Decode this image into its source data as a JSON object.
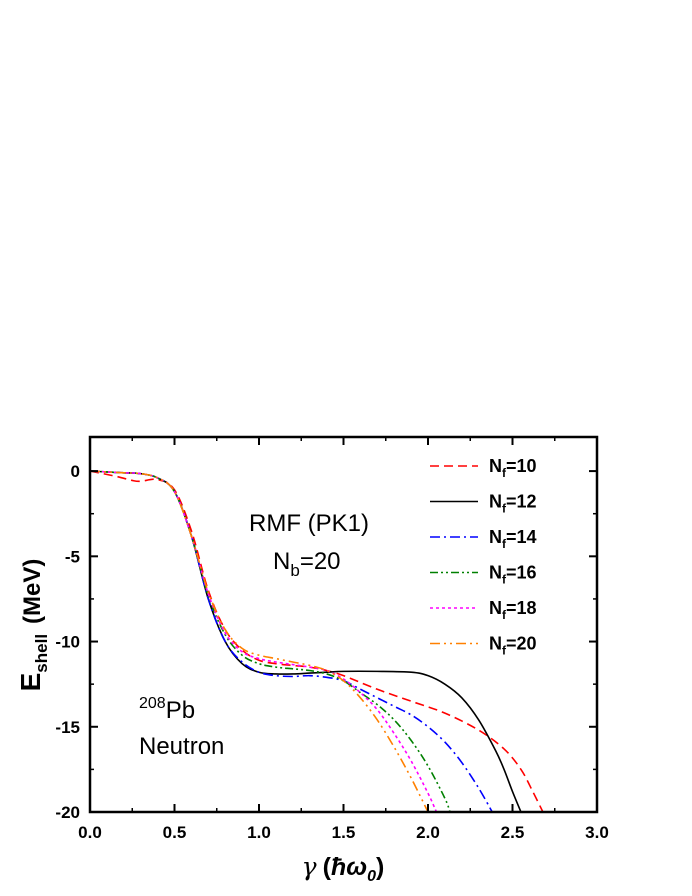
{
  "chart_data": {
    "type": "line",
    "xlabel_symbol": "γ",
    "xlabel_unit_symbol": "ħω",
    "xlabel_unit_sub": "0",
    "ylabel_main": "E",
    "ylabel_sub": "shell",
    "ylabel_unit": "(MeV)",
    "xlim": [
      0.0,
      3.0
    ],
    "ylim": [
      -20,
      2
    ],
    "x_ticks": [
      {
        "value": 0.0,
        "label": "0.0"
      },
      {
        "value": 0.5,
        "label": "0.5"
      },
      {
        "value": 1.0,
        "label": "1.0"
      },
      {
        "value": 1.5,
        "label": "1.5"
      },
      {
        "value": 2.0,
        "label": "2.0"
      },
      {
        "value": 2.5,
        "label": "2.5"
      },
      {
        "value": 3.0,
        "label": "3.0"
      }
    ],
    "y_ticks": [
      {
        "value": 0,
        "label": "0"
      },
      {
        "value": -5,
        "label": "-5"
      },
      {
        "value": -10,
        "label": "-10"
      },
      {
        "value": -15,
        "label": "-15"
      },
      {
        "value": -20,
        "label": "-20"
      }
    ],
    "annotations": {
      "model": "RMF (PK1)",
      "nb_main": "N",
      "nb_sub": "b",
      "nb_value": "=20",
      "nucleus_mass": "208",
      "nucleus_symbol": "Pb",
      "particle": "Neutron"
    },
    "legend_position": "top-right",
    "series": [
      {
        "name_main": "N",
        "name_sub": "f",
        "name_value": "=10",
        "color": "#ff0000",
        "dash": "9,5",
        "x": [
          0.0,
          0.15,
          0.25,
          0.3,
          0.4,
          0.5,
          0.6,
          0.7,
          0.8,
          0.9,
          1.0,
          1.1,
          1.2,
          1.3,
          1.4,
          1.5,
          1.7,
          1.9,
          2.1,
          2.3,
          2.45,
          2.55,
          2.62,
          2.68
        ],
        "y": [
          0.0,
          -0.3,
          -0.55,
          -0.6,
          -0.5,
          -1.1,
          -3.5,
          -7.0,
          -9.3,
          -10.5,
          -11.1,
          -11.3,
          -11.4,
          -11.5,
          -11.7,
          -12.0,
          -12.8,
          -13.5,
          -14.2,
          -15.2,
          -16.3,
          -17.5,
          -18.8,
          -20.0
        ]
      },
      {
        "name_main": "N",
        "name_sub": "f",
        "name_value": "=12",
        "color": "#000000",
        "dash": "",
        "x": [
          0.0,
          0.1,
          0.2,
          0.3,
          0.4,
          0.5,
          0.6,
          0.7,
          0.8,
          0.9,
          1.0,
          1.1,
          1.2,
          1.3,
          1.4,
          1.5,
          1.7,
          1.9,
          2.0,
          2.1,
          2.2,
          2.3,
          2.4,
          2.45,
          2.5,
          2.55
        ],
        "y": [
          0.0,
          -0.05,
          -0.1,
          -0.15,
          -0.4,
          -1.2,
          -3.8,
          -7.5,
          -10.0,
          -11.3,
          -11.8,
          -11.9,
          -11.9,
          -11.85,
          -11.8,
          -11.75,
          -11.75,
          -11.8,
          -12.0,
          -12.5,
          -13.3,
          -14.6,
          -16.4,
          -17.5,
          -18.8,
          -20.0
        ]
      },
      {
        "name_main": "N",
        "name_sub": "f",
        "name_value": "=14",
        "color": "#0000ff",
        "dash": "10,4,2,4",
        "x": [
          0.0,
          0.1,
          0.2,
          0.3,
          0.4,
          0.5,
          0.6,
          0.7,
          0.8,
          0.9,
          1.0,
          1.1,
          1.2,
          1.3,
          1.4,
          1.5,
          1.6,
          1.7,
          1.8,
          1.9,
          2.0,
          2.1,
          2.2,
          2.3,
          2.38
        ],
        "y": [
          0.0,
          -0.05,
          -0.1,
          -0.15,
          -0.4,
          -1.2,
          -3.8,
          -7.5,
          -10.0,
          -11.2,
          -11.8,
          -12.0,
          -12.05,
          -12.0,
          -12.1,
          -12.3,
          -12.8,
          -13.3,
          -13.8,
          -14.3,
          -15.0,
          -15.9,
          -17.1,
          -18.6,
          -20.0
        ]
      },
      {
        "name_main": "N",
        "name_sub": "f",
        "name_value": "=16",
        "color": "#008000",
        "dash": "8,3,2,3,2,3",
        "x": [
          0.0,
          0.1,
          0.2,
          0.3,
          0.4,
          0.5,
          0.6,
          0.7,
          0.8,
          0.9,
          1.0,
          1.1,
          1.2,
          1.3,
          1.4,
          1.5,
          1.6,
          1.7,
          1.8,
          1.9,
          2.0,
          2.1,
          2.13
        ],
        "y": [
          0.0,
          -0.05,
          -0.1,
          -0.15,
          -0.4,
          -1.2,
          -3.8,
          -7.3,
          -9.6,
          -10.8,
          -11.3,
          -11.5,
          -11.6,
          -11.7,
          -11.9,
          -12.3,
          -13.0,
          -13.7,
          -14.6,
          -15.8,
          -17.3,
          -19.2,
          -20.0
        ]
      },
      {
        "name_main": "N",
        "name_sub": "f",
        "name_value": "=18",
        "color": "#ff00ff",
        "dash": "3,3",
        "x": [
          0.0,
          0.1,
          0.2,
          0.3,
          0.4,
          0.5,
          0.6,
          0.7,
          0.8,
          0.9,
          1.0,
          1.1,
          1.2,
          1.3,
          1.4,
          1.5,
          1.6,
          1.7,
          1.8,
          1.9,
          2.0,
          2.05
        ],
        "y": [
          0.0,
          -0.05,
          -0.1,
          -0.15,
          -0.4,
          -1.2,
          -3.8,
          -7.2,
          -9.5,
          -10.6,
          -11.0,
          -11.2,
          -11.35,
          -11.5,
          -11.7,
          -12.2,
          -13.0,
          -14.0,
          -15.4,
          -17.0,
          -18.9,
          -20.0
        ]
      },
      {
        "name_main": "N",
        "name_sub": "f",
        "name_value": "=20",
        "color": "#ff8000",
        "dash": "10,4,2,4,2,4",
        "x": [
          0.0,
          0.1,
          0.2,
          0.3,
          0.4,
          0.5,
          0.6,
          0.7,
          0.8,
          0.9,
          1.0,
          1.1,
          1.2,
          1.3,
          1.4,
          1.5,
          1.6,
          1.7,
          1.8,
          1.9,
          2.0
        ],
        "y": [
          0.0,
          -0.05,
          -0.1,
          -0.15,
          -0.4,
          -1.2,
          -3.8,
          -7.1,
          -9.3,
          -10.4,
          -10.8,
          -11.0,
          -11.2,
          -11.4,
          -11.7,
          -12.3,
          -13.3,
          -14.6,
          -16.2,
          -18.0,
          -20.0
        ]
      }
    ]
  }
}
